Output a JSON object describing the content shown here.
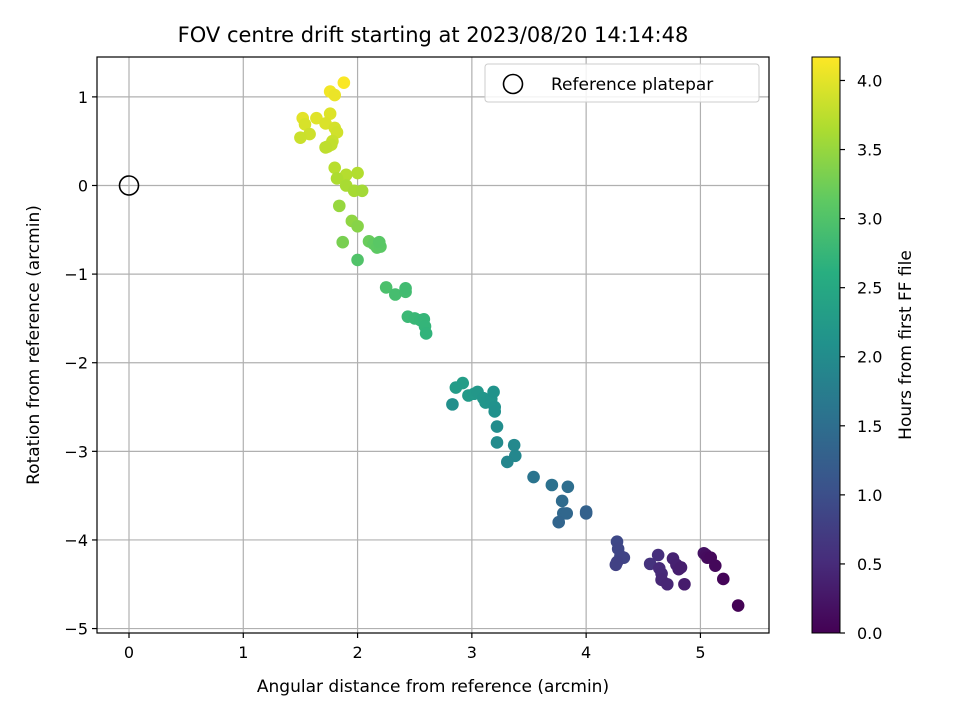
{
  "chart_data": {
    "type": "scatter",
    "title": "FOV centre drift starting at 2023/08/20 14:14:48",
    "xlabel": "Angular distance from reference (arcmin)",
    "ylabel": "Rotation from reference (arcmin)",
    "xlim": [
      -0.28,
      5.6
    ],
    "ylim": [
      -5.05,
      1.45
    ],
    "xticks": [
      0,
      1,
      2,
      3,
      4,
      5
    ],
    "yticks": [
      1,
      0,
      -1,
      -2,
      -3,
      -4,
      -5
    ],
    "xtick_labels": [
      "0",
      "1",
      "2",
      "3",
      "4",
      "5"
    ],
    "ytick_labels": [
      "1",
      "0",
      "−1",
      "−2",
      "−3",
      "−4",
      "−5"
    ],
    "grid": true,
    "colormap": "viridis",
    "colorbar": {
      "label": "Hours from first FF file",
      "range": [
        0,
        4.17
      ],
      "ticks": [
        0.0,
        0.5,
        1.0,
        1.5,
        2.0,
        2.5,
        3.0,
        3.5,
        4.0
      ],
      "tick_labels": [
        "0.0",
        "0.5",
        "1.0",
        "1.5",
        "2.0",
        "2.5",
        "3.0",
        "3.5",
        "4.0"
      ]
    },
    "legend": {
      "position": "top-right",
      "entries": [
        "Reference platepar"
      ]
    },
    "reference_point": {
      "name": "Reference platepar",
      "x": 0,
      "y": 0
    },
    "points": [
      [
        1.88,
        1.16,
        4.15
      ],
      [
        1.76,
        1.06,
        4.1
      ],
      [
        1.8,
        1.02,
        4.05
      ],
      [
        1.52,
        0.76,
        4.0
      ],
      [
        1.64,
        0.76,
        3.98
      ],
      [
        1.76,
        0.81,
        3.96
      ],
      [
        1.72,
        0.7,
        3.94
      ],
      [
        1.54,
        0.69,
        3.92
      ],
      [
        1.8,
        0.65,
        3.9
      ],
      [
        1.82,
        0.6,
        3.88
      ],
      [
        1.58,
        0.58,
        3.86
      ],
      [
        1.5,
        0.54,
        3.84
      ],
      [
        1.78,
        0.5,
        3.82
      ],
      [
        1.74,
        0.44,
        3.8
      ],
      [
        1.77,
        0.46,
        3.78
      ],
      [
        1.72,
        0.43,
        3.76
      ],
      [
        1.8,
        0.2,
        3.72
      ],
      [
        1.9,
        0.12,
        3.7
      ],
      [
        2.0,
        0.14,
        3.68
      ],
      [
        1.82,
        0.08,
        3.65
      ],
      [
        1.9,
        0.0,
        3.62
      ],
      [
        1.97,
        -0.06,
        3.6
      ],
      [
        2.04,
        -0.06,
        3.58
      ],
      [
        1.84,
        -0.23,
        3.5
      ],
      [
        1.95,
        -0.4,
        3.45
      ],
      [
        2.0,
        -0.46,
        3.4
      ],
      [
        1.87,
        -0.64,
        3.3
      ],
      [
        2.1,
        -0.63,
        3.2
      ],
      [
        2.14,
        -0.66,
        3.15
      ],
      [
        2.17,
        -0.7,
        3.12
      ],
      [
        2.2,
        -0.69,
        3.1
      ],
      [
        2.19,
        -0.64,
        3.08
      ],
      [
        2.0,
        -0.84,
        3.0
      ],
      [
        2.25,
        -1.15,
        2.95
      ],
      [
        2.33,
        -1.23,
        2.9
      ],
      [
        2.42,
        -1.2,
        2.88
      ],
      [
        2.42,
        -1.16,
        2.86
      ],
      [
        2.44,
        -1.48,
        2.8
      ],
      [
        2.5,
        -1.5,
        2.78
      ],
      [
        2.55,
        -1.52,
        2.76
      ],
      [
        2.58,
        -1.51,
        2.74
      ],
      [
        2.59,
        -1.59,
        2.72
      ],
      [
        2.6,
        -1.67,
        2.7
      ],
      [
        2.92,
        -2.23,
        2.3
      ],
      [
        2.86,
        -2.28,
        2.28
      ],
      [
        2.97,
        -2.37,
        2.24
      ],
      [
        3.02,
        -2.35,
        2.22
      ],
      [
        3.05,
        -2.33,
        2.2
      ],
      [
        3.1,
        -2.4,
        2.18
      ],
      [
        3.12,
        -2.45,
        2.16
      ],
      [
        3.17,
        -2.41,
        2.14
      ],
      [
        3.19,
        -2.33,
        2.12
      ],
      [
        3.2,
        -2.5,
        2.1
      ],
      [
        3.2,
        -2.55,
        2.08
      ],
      [
        2.83,
        -2.47,
        2.06
      ],
      [
        3.22,
        -2.72,
        2.02
      ],
      [
        3.22,
        -2.9,
        1.98
      ],
      [
        3.37,
        -2.93,
        1.95
      ],
      [
        3.38,
        -3.05,
        1.92
      ],
      [
        3.31,
        -3.12,
        1.9
      ],
      [
        3.54,
        -3.29,
        1.6
      ],
      [
        3.7,
        -3.38,
        1.55
      ],
      [
        3.84,
        -3.4,
        1.5
      ],
      [
        3.79,
        -3.56,
        1.45
      ],
      [
        3.8,
        -3.7,
        1.4
      ],
      [
        3.83,
        -3.7,
        1.38
      ],
      [
        3.76,
        -3.8,
        1.35
      ],
      [
        4.0,
        -3.68,
        1.3
      ],
      [
        4.0,
        -3.7,
        1.28
      ],
      [
        4.27,
        -4.02,
        0.9
      ],
      [
        4.28,
        -4.1,
        0.88
      ],
      [
        4.3,
        -4.18,
        0.86
      ],
      [
        4.33,
        -4.2,
        0.84
      ],
      [
        4.27,
        -4.25,
        0.82
      ],
      [
        4.26,
        -4.28,
        0.8
      ],
      [
        4.56,
        -4.27,
        0.6
      ],
      [
        4.63,
        -4.17,
        0.55
      ],
      [
        4.64,
        -4.32,
        0.5
      ],
      [
        4.66,
        -4.38,
        0.48
      ],
      [
        4.66,
        -4.45,
        0.46
      ],
      [
        4.71,
        -4.5,
        0.44
      ],
      [
        4.76,
        -4.21,
        0.4
      ],
      [
        4.79,
        -4.28,
        0.38
      ],
      [
        4.81,
        -4.33,
        0.36
      ],
      [
        4.83,
        -4.31,
        0.34
      ],
      [
        4.86,
        -4.5,
        0.32
      ],
      [
        5.03,
        -4.15,
        0.2
      ],
      [
        5.05,
        -4.17,
        0.15
      ],
      [
        5.06,
        -4.2,
        0.12
      ],
      [
        5.09,
        -4.2,
        0.1
      ],
      [
        5.13,
        -4.29,
        0.08
      ],
      [
        5.2,
        -4.44,
        0.05
      ],
      [
        5.33,
        -4.74,
        0.02
      ]
    ]
  }
}
